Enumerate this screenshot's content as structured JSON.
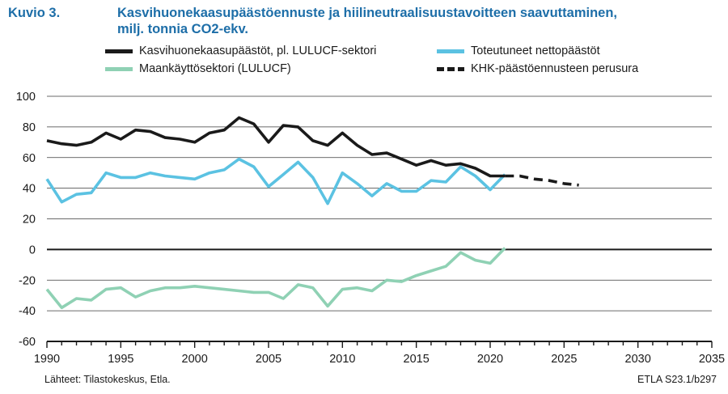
{
  "header": {
    "figure_number": "Kuvio 3.",
    "title": "Kasvihuonekaasupäästöennuste ja hiilineutraalisuustavoitteen saavuttaminen,",
    "subtitle": "milj. tonnia CO2-ekv."
  },
  "footer": {
    "source": "Lähteet: Tilastokeskus, Etla.",
    "code": "ETLA S23.1/b297"
  },
  "chart_data": {
    "type": "line",
    "xlim": [
      1990,
      2035
    ],
    "ylim": [
      -60,
      100
    ],
    "x_ticks": [
      1990,
      1995,
      2000,
      2005,
      2010,
      2015,
      2020,
      2025,
      2030,
      2035
    ],
    "y_ticks": [
      -60,
      -40,
      -20,
      0,
      20,
      40,
      60,
      80,
      100
    ],
    "grid": "horizontal",
    "legend_position": "top",
    "series": [
      {
        "name": "Kasvihuonekaasupäästöt, pl. LULUCF-sektori",
        "color": "#1a1a1a",
        "style": "solid",
        "x": [
          1990,
          1991,
          1992,
          1993,
          1994,
          1995,
          1996,
          1997,
          1998,
          1999,
          2000,
          2001,
          2002,
          2003,
          2004,
          2005,
          2006,
          2007,
          2008,
          2009,
          2010,
          2011,
          2012,
          2013,
          2014,
          2015,
          2016,
          2017,
          2018,
          2019,
          2020,
          2021
        ],
        "values": [
          71,
          69,
          68,
          70,
          76,
          72,
          78,
          77,
          73,
          72,
          70,
          76,
          78,
          86,
          82,
          70,
          81,
          80,
          71,
          68,
          76,
          68,
          62,
          63,
          59,
          55,
          58,
          55,
          56,
          53,
          48,
          48
        ]
      },
      {
        "name": "Toteutuneet nettopäästöt",
        "color": "#5bc2e2",
        "style": "solid",
        "x": [
          1990,
          1991,
          1992,
          1993,
          1994,
          1995,
          1996,
          1997,
          1998,
          1999,
          2000,
          2001,
          2002,
          2003,
          2004,
          2005,
          2006,
          2007,
          2008,
          2009,
          2010,
          2011,
          2012,
          2013,
          2014,
          2015,
          2016,
          2017,
          2018,
          2019,
          2020,
          2021
        ],
        "values": [
          46,
          31,
          36,
          37,
          50,
          47,
          47,
          50,
          48,
          47,
          46,
          50,
          52,
          59,
          54,
          41,
          49,
          57,
          47,
          30,
          50,
          43,
          35,
          43,
          38,
          38,
          45,
          44,
          54,
          48,
          39,
          49
        ]
      },
      {
        "name": "Maankäyttösektori (LULUCF)",
        "color": "#8fd1b4",
        "style": "solid",
        "x": [
          1990,
          1991,
          1992,
          1993,
          1994,
          1995,
          1996,
          1997,
          1998,
          1999,
          2000,
          2001,
          2002,
          2003,
          2004,
          2005,
          2006,
          2007,
          2008,
          2009,
          2010,
          2011,
          2012,
          2013,
          2014,
          2015,
          2016,
          2017,
          2018,
          2019,
          2020,
          2021
        ],
        "values": [
          -26,
          -38,
          -32,
          -33,
          -26,
          -25,
          -31,
          -27,
          -25,
          -25,
          -24,
          -25,
          -26,
          -27,
          -28,
          -28,
          -32,
          -23,
          -25,
          -37,
          -26,
          -25,
          -27,
          -20,
          -21,
          -17,
          -14,
          -11,
          -2,
          -7,
          -9,
          1
        ]
      },
      {
        "name": "KHK-päästöennusteen perusura",
        "color": "#1a1a1a",
        "style": "dashed",
        "x": [
          2021,
          2022,
          2023,
          2024,
          2025,
          2026
        ],
        "values": [
          48,
          48,
          46,
          45,
          43,
          42
        ]
      }
    ]
  }
}
